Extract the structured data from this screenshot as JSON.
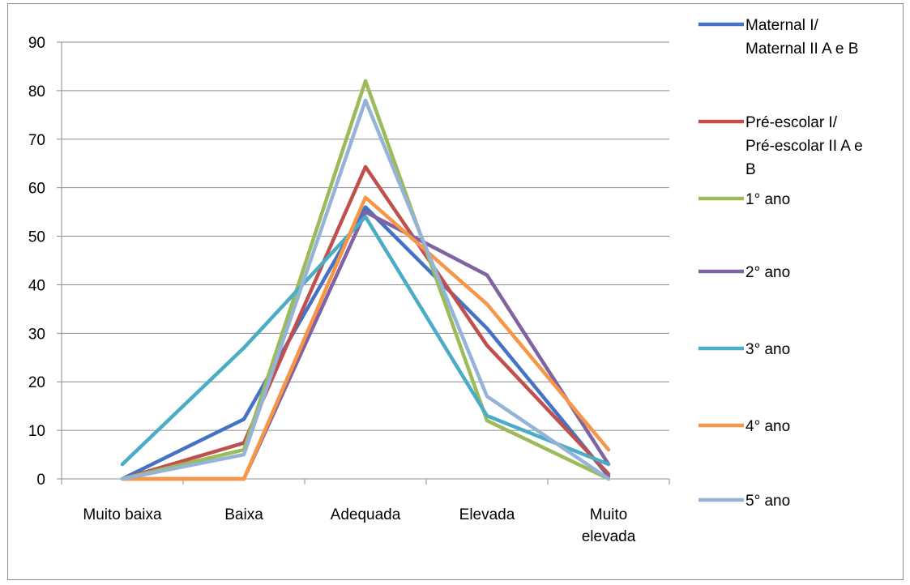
{
  "chart_data": {
    "type": "line",
    "title": "",
    "xlabel": "",
    "ylabel": "",
    "categories": [
      [
        "Muito baixa"
      ],
      [
        "Baixa"
      ],
      [
        "Adequada"
      ],
      [
        "Elevada"
      ],
      [
        "Muito",
        "elevada"
      ]
    ],
    "ylim": [
      0,
      90
    ],
    "yticks": [
      0,
      10,
      20,
      30,
      40,
      50,
      60,
      70,
      80,
      90
    ],
    "grid": true,
    "legend_position": "right",
    "series": [
      {
        "name": [
          "Maternal I/",
          "Maternal II A e B"
        ],
        "color": "#4472c4",
        "values": [
          0,
          12.3,
          56,
          31,
          0.5
        ]
      },
      {
        "name": [
          "Pré-escolar I/",
          "Pré-escolar II A e",
          "B"
        ],
        "color": "#c0504d",
        "values": [
          0,
          7.4,
          64.3,
          27.5,
          1
        ]
      },
      {
        "name": [
          "1° ano"
        ],
        "color": "#9bbb59",
        "values": [
          0,
          6,
          82,
          12,
          0
        ]
      },
      {
        "name": [
          "2° ano"
        ],
        "color": "#8064a2",
        "values": [
          0,
          0,
          55,
          42,
          3
        ]
      },
      {
        "name": [
          "3° ano"
        ],
        "color": "#4bacc6",
        "values": [
          3,
          27,
          54,
          13,
          3
        ]
      },
      {
        "name": [
          "4° ano"
        ],
        "color": "#f79646",
        "values": [
          0,
          0,
          58,
          36,
          6
        ]
      },
      {
        "name": [
          "5° ano"
        ],
        "color": "#95b3d7",
        "values": [
          0,
          5,
          78,
          17,
          0
        ]
      }
    ]
  }
}
